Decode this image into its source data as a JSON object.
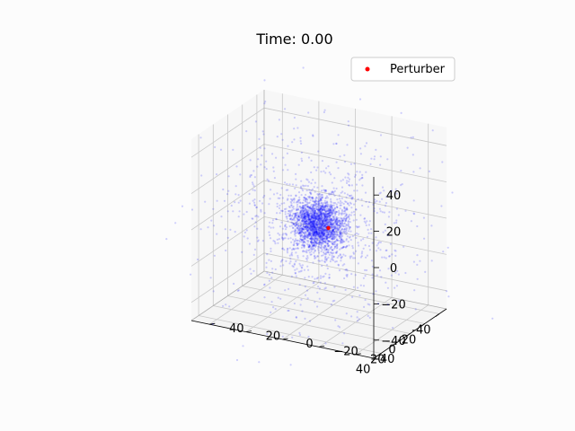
{
  "chart_data": {
    "type": "scatter",
    "subtype": "3d-scatter",
    "title": "Time: 0.00",
    "xlabel": "",
    "ylabel": "",
    "zlabel": "",
    "xlim": [
      -50,
      50
    ],
    "ylim": [
      -50,
      50
    ],
    "zlim": [
      -50,
      50
    ],
    "x_ticks": [
      -40,
      -20,
      0,
      20,
      40
    ],
    "y_ticks": [
      -40,
      -20,
      0,
      20,
      40
    ],
    "z_ticks": [
      -40,
      -20,
      0,
      20,
      40
    ],
    "x_tick_labels": [
      "-40",
      "-20",
      "0",
      "20",
      "40"
    ],
    "y_tick_labels": [
      "−40",
      "−20",
      "0",
      "20",
      "40"
    ],
    "z_tick_labels": [
      "−40",
      "−20",
      "0",
      "20",
      "40"
    ],
    "grid": true,
    "legend": {
      "placement": "top-right",
      "entries": [
        "Perturber"
      ]
    },
    "series": [
      {
        "role": "particles",
        "color": "#0000ff",
        "distribution": "concentrated cluster near origin with sparse halo",
        "count": 3000,
        "core_scale": 7,
        "halo_spread": 45
      },
      {
        "name": "Perturber",
        "color": "#ff0000",
        "points": [
          {
            "x": -8,
            "y": -2,
            "z": -4
          }
        ]
      }
    ]
  }
}
